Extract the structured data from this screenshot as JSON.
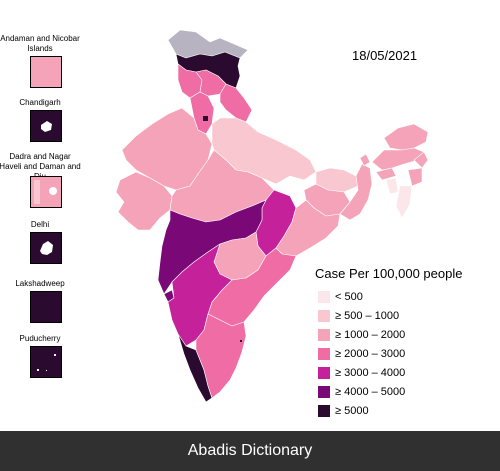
{
  "date": "18/05/2021",
  "legend": {
    "title": "Case Per 100,000 people",
    "items": [
      {
        "label": "< 500",
        "color": "#fbe6ea"
      },
      {
        "label": "≥ 500 – 1000",
        "color": "#f9c7d0"
      },
      {
        "label": "≥ 1000 – 2000",
        "color": "#f4a3b9"
      },
      {
        "label": "≥ 2000 – 3000",
        "color": "#ef6ca5"
      },
      {
        "label": "≥ 3000 – 4000",
        "color": "#c4219a"
      },
      {
        "label": "≥ 4000 – 5000",
        "color": "#7a0877"
      },
      {
        "label": "≥ 5000",
        "color": "#2b0a2f"
      }
    ]
  },
  "insets": [
    {
      "name": "Andaman and Nicobar Islands",
      "color": "#f4a3b9"
    },
    {
      "name": "Chandigarh",
      "color": "#2b0a2f"
    },
    {
      "name": "Dadra and Nagar Haveli and Daman and Diu",
      "color": "#f4a3b9"
    },
    {
      "name": "Delhi",
      "color": "#2b0a2f"
    },
    {
      "name": "Lakshadweep",
      "color": "#2b0a2f"
    },
    {
      "name": "Puducherry",
      "color": "#2b0a2f"
    }
  ],
  "footer": "Abadis Dictionary"
}
